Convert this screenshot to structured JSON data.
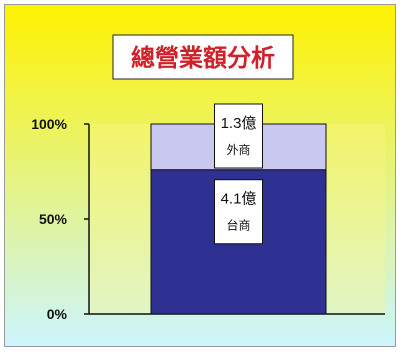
{
  "chart_data": {
    "type": "bar",
    "stacked": true,
    "title": "總營業額分析",
    "categories": [
      ""
    ],
    "series": [
      {
        "name": "台商",
        "values": [
          4.1
        ],
        "label": "4.1億",
        "color": "#2e3192"
      },
      {
        "name": "外商",
        "values": [
          1.3
        ],
        "label": "1.3億",
        "color": "#c8c8f0"
      }
    ],
    "normalized": true,
    "yticks": [
      "0%",
      "50%",
      "100%"
    ],
    "ylim": [
      0,
      100
    ],
    "grid": false,
    "legend": "none",
    "background": {
      "top": "#fff200",
      "bottom": "#ccf5ff"
    }
  }
}
